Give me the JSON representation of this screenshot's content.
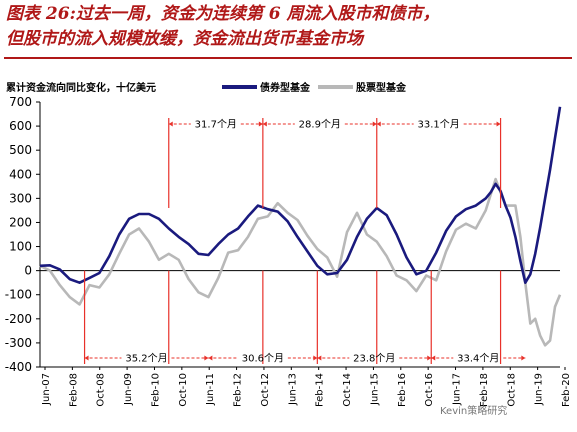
{
  "title_lines": [
    "图表 26:过去一周，资金为连续第 6 周流入股市和债市，",
    "但股市的流入规模放缓，资金流出货币基金市场"
  ],
  "unit_label": "累计资金流向同比变化，十亿美元",
  "watermark": "Kevin策略研究",
  "colors": {
    "title": "#b01818",
    "bond": "#1a1a7e",
    "equity": "#b8b8b8",
    "annotation": "#e8312a"
  },
  "chart_data": {
    "type": "line",
    "ylim": [
      -400,
      700
    ],
    "yticks": [
      -400,
      -300,
      -200,
      -100,
      0,
      100,
      200,
      300,
      400,
      500,
      600,
      700
    ],
    "xticks": [
      "Jun-07",
      "Feb-08",
      "Oct-08",
      "Jun-09",
      "Feb-10",
      "Oct-10",
      "Jun-11",
      "Feb-12",
      "Oct-12",
      "Jun-13",
      "Feb-14",
      "Oct-14",
      "Jun-15",
      "Feb-16",
      "Oct-16",
      "Jun-17",
      "Feb-18",
      "Oct-18",
      "Jun-19",
      "Feb-20"
    ],
    "series": [
      {
        "name": "债券型基金",
        "points": [
          [
            0,
            20
          ],
          [
            2,
            22
          ],
          [
            4,
            5
          ],
          [
            6,
            -35
          ],
          [
            8,
            -50
          ],
          [
            10,
            -30
          ],
          [
            12,
            -10
          ],
          [
            14,
            60
          ],
          [
            16,
            150
          ],
          [
            18,
            215
          ],
          [
            20,
            235
          ],
          [
            22,
            235
          ],
          [
            24,
            215
          ],
          [
            26,
            175
          ],
          [
            28,
            140
          ],
          [
            30,
            110
          ],
          [
            32,
            70
          ],
          [
            34,
            65
          ],
          [
            36,
            110
          ],
          [
            38,
            150
          ],
          [
            40,
            175
          ],
          [
            42,
            225
          ],
          [
            44,
            270
          ],
          [
            46,
            255
          ],
          [
            48,
            245
          ],
          [
            50,
            205
          ],
          [
            52,
            140
          ],
          [
            54,
            80
          ],
          [
            56,
            20
          ],
          [
            58,
            -15
          ],
          [
            60,
            -10
          ],
          [
            62,
            45
          ],
          [
            64,
            140
          ],
          [
            66,
            215
          ],
          [
            68,
            260
          ],
          [
            70,
            230
          ],
          [
            72,
            150
          ],
          [
            74,
            55
          ],
          [
            76,
            -15
          ],
          [
            78,
            0
          ],
          [
            80,
            75
          ],
          [
            82,
            165
          ],
          [
            84,
            225
          ],
          [
            86,
            255
          ],
          [
            88,
            270
          ],
          [
            90,
            300
          ],
          [
            91,
            325
          ],
          [
            92,
            360
          ],
          [
            93,
            330
          ],
          [
            94,
            270
          ],
          [
            95,
            220
          ],
          [
            96,
            140
          ],
          [
            97,
            40
          ],
          [
            98,
            -50
          ],
          [
            99,
            -15
          ],
          [
            100,
            70
          ],
          [
            101,
            180
          ],
          [
            102,
            300
          ],
          [
            103,
            420
          ],
          [
            104,
            550
          ],
          [
            105,
            680
          ]
        ]
      },
      {
        "name": "股票型基金",
        "points": [
          [
            0,
            20
          ],
          [
            2,
            0
          ],
          [
            4,
            -60
          ],
          [
            6,
            -110
          ],
          [
            8,
            -140
          ],
          [
            10,
            -60
          ],
          [
            12,
            -70
          ],
          [
            14,
            -15
          ],
          [
            16,
            70
          ],
          [
            18,
            150
          ],
          [
            20,
            175
          ],
          [
            22,
            120
          ],
          [
            24,
            45
          ],
          [
            26,
            70
          ],
          [
            28,
            45
          ],
          [
            30,
            -35
          ],
          [
            32,
            -90
          ],
          [
            34,
            -110
          ],
          [
            36,
            -30
          ],
          [
            38,
            75
          ],
          [
            40,
            85
          ],
          [
            42,
            140
          ],
          [
            44,
            215
          ],
          [
            46,
            225
          ],
          [
            48,
            280
          ],
          [
            50,
            240
          ],
          [
            52,
            210
          ],
          [
            54,
            145
          ],
          [
            56,
            90
          ],
          [
            58,
            55
          ],
          [
            60,
            -25
          ],
          [
            62,
            160
          ],
          [
            64,
            240
          ],
          [
            66,
            150
          ],
          [
            68,
            120
          ],
          [
            70,
            60
          ],
          [
            72,
            -20
          ],
          [
            74,
            -40
          ],
          [
            76,
            -85
          ],
          [
            78,
            -20
          ],
          [
            80,
            -40
          ],
          [
            82,
            80
          ],
          [
            84,
            170
          ],
          [
            86,
            195
          ],
          [
            88,
            175
          ],
          [
            90,
            250
          ],
          [
            92,
            380
          ],
          [
            94,
            270
          ],
          [
            96,
            270
          ],
          [
            97,
            140
          ],
          [
            98,
            -50
          ],
          [
            99,
            -220
          ],
          [
            100,
            -200
          ],
          [
            101,
            -270
          ],
          [
            102,
            -310
          ],
          [
            103,
            -290
          ],
          [
            104,
            -150
          ],
          [
            105,
            -100
          ]
        ]
      }
    ],
    "interval_dividers": [
      9,
      26,
      45,
      56,
      68,
      79,
      93
    ],
    "intervals_top": [
      {
        "label": "31.7个月",
        "from": 26,
        "to": 45
      },
      {
        "label": "28.9个月",
        "from": 45,
        "to": 68
      },
      {
        "label": "33.1个月",
        "from": 68,
        "to": 93
      }
    ],
    "intervals_bottom": [
      {
        "label": "35.2个月",
        "from": 9,
        "to": 34
      },
      {
        "label": "30.6个月",
        "from": 34,
        "to": 56
      },
      {
        "label": "23.8个月",
        "from": 56,
        "to": 79
      },
      {
        "label": "33.4个月",
        "from": 79,
        "to": 98
      }
    ]
  }
}
